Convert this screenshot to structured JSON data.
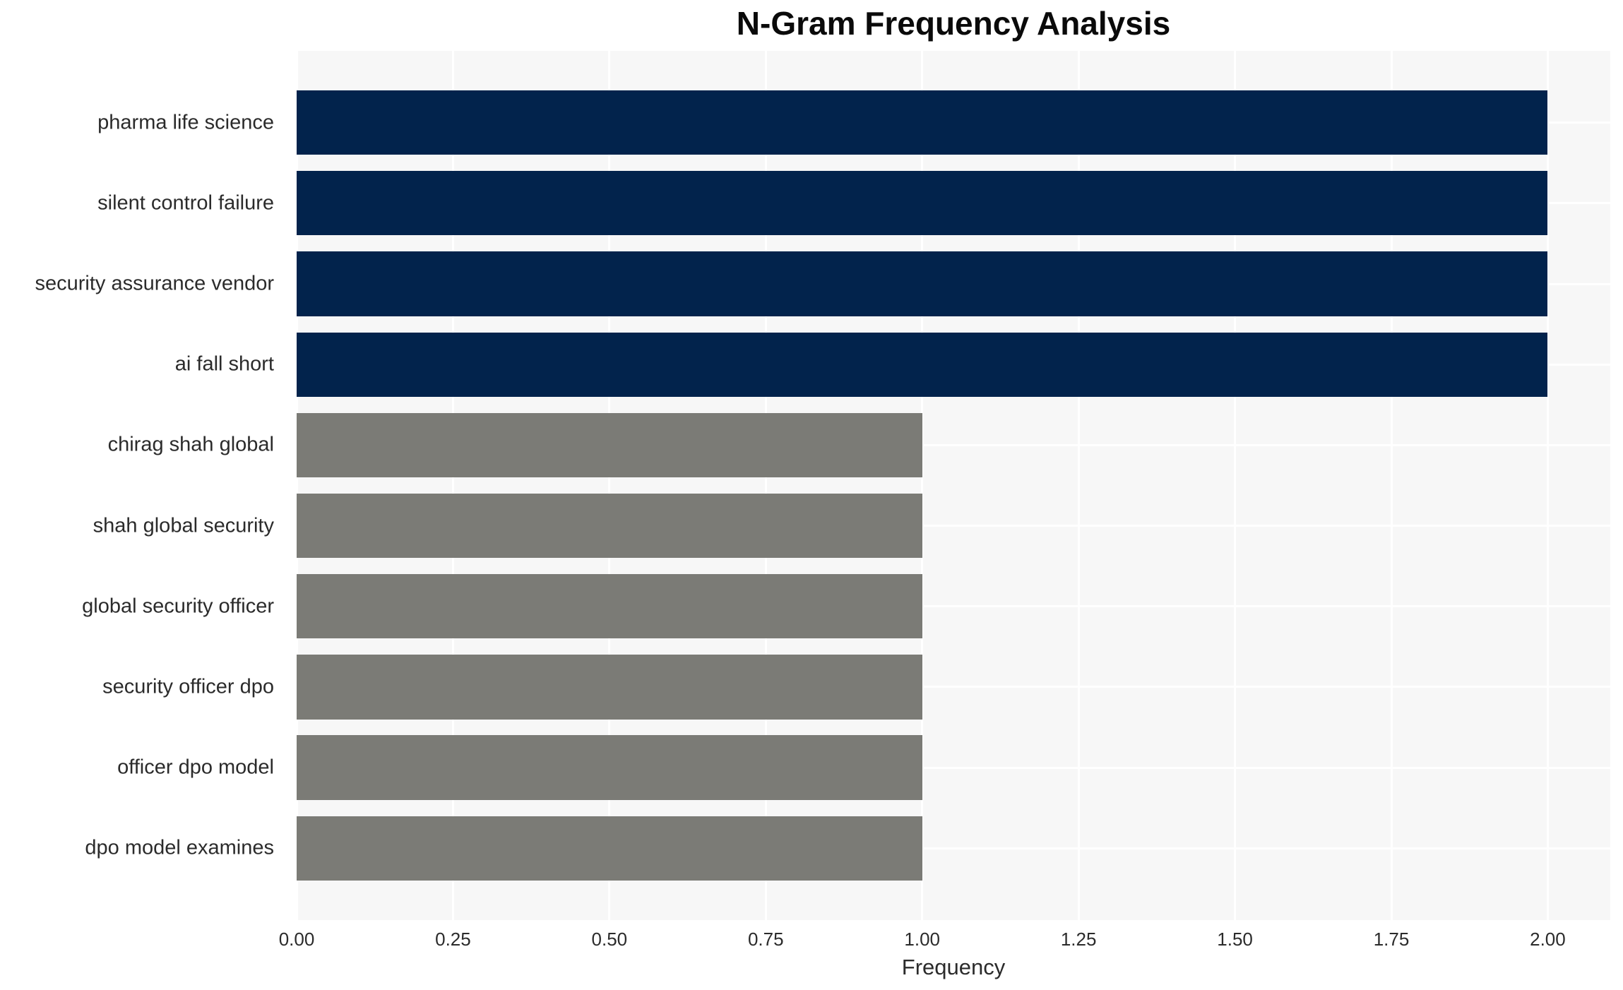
{
  "chart_data": {
    "type": "bar",
    "orientation": "horizontal",
    "title": "N-Gram Frequency Analysis",
    "xlabel": "Frequency",
    "ylabel": "",
    "categories": [
      "pharma life science",
      "silent control failure",
      "security assurance vendor",
      "ai fall short",
      "chirag shah global",
      "shah global security",
      "global security officer",
      "security officer dpo",
      "officer dpo model",
      "dpo model examines"
    ],
    "values": [
      2,
      2,
      2,
      2,
      1,
      1,
      1,
      1,
      1,
      1
    ],
    "bar_colors": [
      "#02234c",
      "#02234c",
      "#02234c",
      "#02234c",
      "#7b7b76",
      "#7b7b76",
      "#7b7b76",
      "#7b7b76",
      "#7b7b76",
      "#7b7b76"
    ],
    "xlim": [
      0,
      2.1
    ],
    "xticks": [
      {
        "value": 0.0,
        "label": "0.00"
      },
      {
        "value": 0.25,
        "label": "0.25"
      },
      {
        "value": 0.5,
        "label": "0.50"
      },
      {
        "value": 0.75,
        "label": "0.75"
      },
      {
        "value": 1.0,
        "label": "1.00"
      },
      {
        "value": 1.25,
        "label": "1.25"
      },
      {
        "value": 1.5,
        "label": "1.50"
      },
      {
        "value": 1.75,
        "label": "1.75"
      },
      {
        "value": 2.0,
        "label": "2.00"
      }
    ],
    "grid": true,
    "legend_position": "none",
    "colors": {
      "plot_background": "#f7f7f7",
      "figure_background": "#ffffff",
      "grid_color": "#ffffff",
      "title_color": "#0a0a0a",
      "tick_color": "#2b2b2b"
    }
  }
}
